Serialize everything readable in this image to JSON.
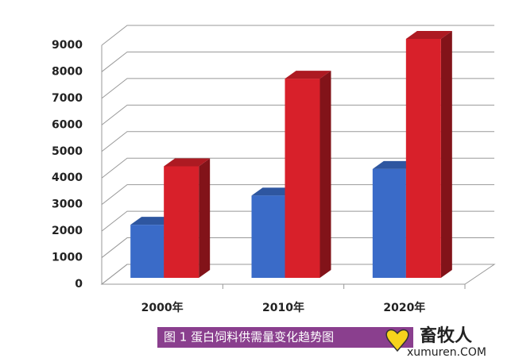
{
  "chart_data": {
    "type": "bar3d",
    "categories": [
      "2000年",
      "2010年",
      "2020年"
    ],
    "series": [
      {
        "color": "#3a6bc8",
        "values": [
          2000,
          3100,
          4100
        ]
      },
      {
        "color": "#d8202a",
        "values": [
          4200,
          7500,
          9000
        ]
      }
    ],
    "ylim": [
      0,
      9000
    ],
    "yticks": [
      0,
      1000,
      2000,
      3000,
      4000,
      5000,
      6000,
      7000,
      8000,
      9000
    ],
    "grid": true,
    "caption": "图 1   蛋白饲料供需量变化趋势图",
    "watermark": "畜牧人",
    "watermark_url": "xumuren.COM"
  }
}
